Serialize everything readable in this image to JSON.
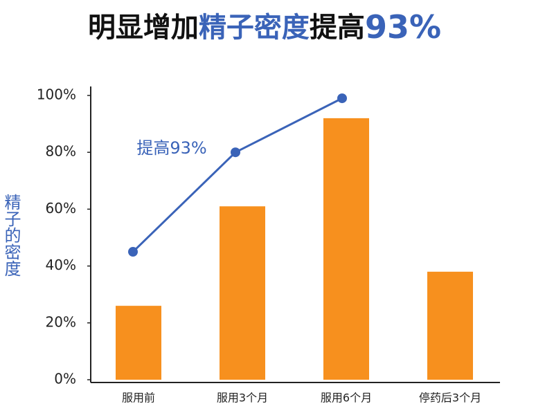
{
  "chart_data": {
    "type": "bar",
    "title": [
      "明显增加",
      "精子密度",
      "提高",
      "93%"
    ],
    "title_colors": [
      "#111111",
      "#3a63b8",
      "#111111",
      "#3a63b8"
    ],
    "ylabel": "精子的密度",
    "annotation": "提高93%",
    "categories": [
      "服用前",
      "服用3个月",
      "服用6个月",
      "停药后3个月"
    ],
    "series": [
      {
        "type": "bar",
        "color": "#f7901e",
        "values": [
          26,
          61,
          92,
          38
        ]
      },
      {
        "type": "line",
        "color": "#3a63b8",
        "values": [
          45,
          80,
          99,
          null
        ]
      }
    ],
    "ylim": [
      0,
      100
    ],
    "yticks": [
      {
        "value": 0,
        "label": "0%"
      },
      {
        "value": 20,
        "label": "20%"
      },
      {
        "value": 40,
        "label": "40%"
      },
      {
        "value": 60,
        "label": "60%"
      },
      {
        "value": 80,
        "label": "80%"
      },
      {
        "value": 100,
        "label": "100%"
      }
    ],
    "grid": false
  }
}
